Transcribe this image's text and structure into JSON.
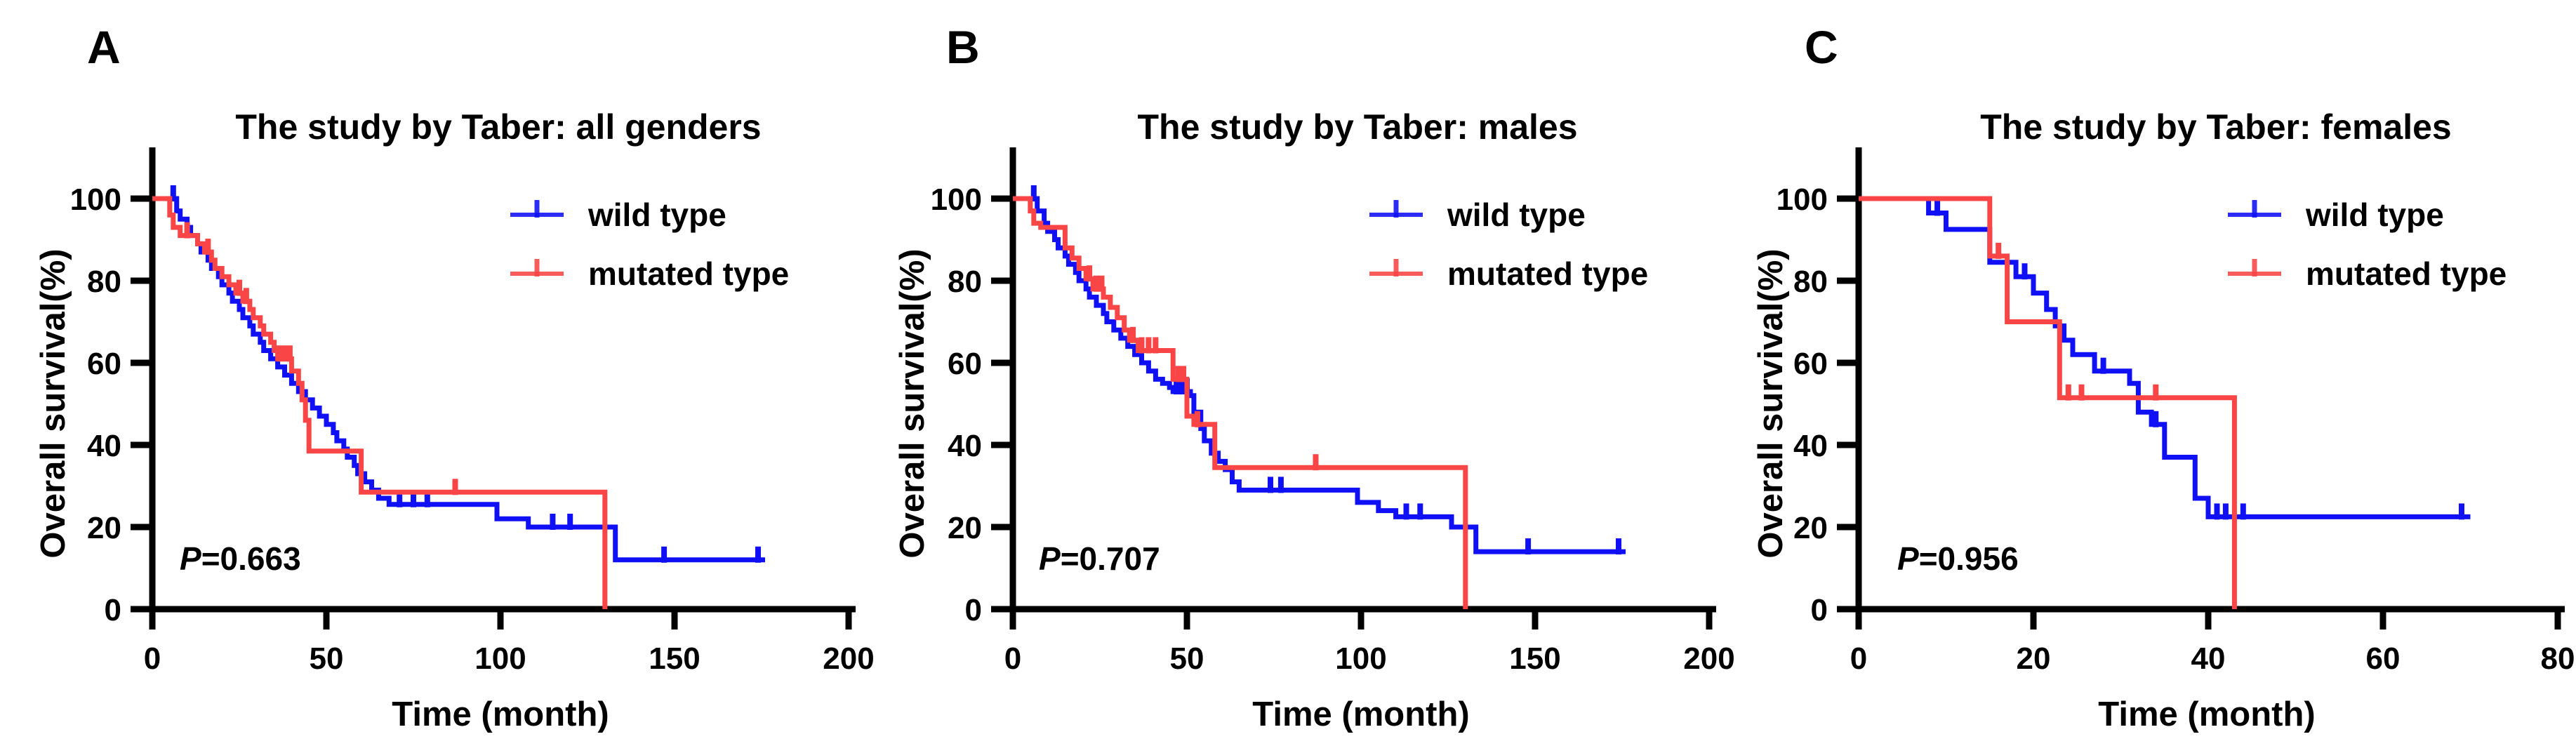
{
  "figure": {
    "background": "#ffffff",
    "text_color": "#000000",
    "wild_color": "#1010f7",
    "mutated_color": "#f94545"
  },
  "chart_data": [
    {
      "type": "line",
      "panel_label": "A",
      "title": "The study by Taber: all genders",
      "xlabel": "Time (month)",
      "ylabel": "Overall survival(%)",
      "p_value": "P=0.663",
      "xlim": [
        0,
        200
      ],
      "ylim": [
        0,
        100
      ],
      "xticks": [
        0,
        50,
        100,
        150,
        200
      ],
      "yticks": [
        0,
        20,
        40,
        60,
        80,
        100
      ],
      "grid": false,
      "legend_position": "upper right inside",
      "legend": [
        "wild type",
        "mutated type"
      ],
      "series": [
        {
          "name": "wild type",
          "color": "#1010f7",
          "steps": [
            [
              4,
              100
            ],
            [
              7,
              97
            ],
            [
              8,
              95
            ],
            [
              10,
              93
            ],
            [
              11,
              91
            ],
            [
              13,
              89
            ],
            [
              14,
              87
            ],
            [
              16,
              85
            ],
            [
              17,
              83
            ],
            [
              19,
              81
            ],
            [
              20,
              79
            ],
            [
              22,
              77
            ],
            [
              23,
              75
            ],
            [
              25,
              73
            ],
            [
              26,
              71
            ],
            [
              28,
              69
            ],
            [
              29,
              67
            ],
            [
              31,
              65
            ],
            [
              32,
              63
            ],
            [
              34,
              61
            ],
            [
              36,
              59
            ],
            [
              38,
              57
            ],
            [
              40,
              55
            ],
            [
              42,
              53
            ],
            [
              44,
              51
            ],
            [
              46,
              49
            ],
            [
              48,
              47
            ],
            [
              50,
              45
            ],
            [
              52,
              43
            ],
            [
              53,
              41
            ],
            [
              55,
              39
            ],
            [
              56,
              37
            ],
            [
              58,
              35
            ],
            [
              59,
              33
            ],
            [
              61,
              31
            ],
            [
              63,
              29
            ],
            [
              65,
              27
            ],
            [
              68,
              25.5
            ],
            [
              99,
              22
            ],
            [
              108,
              20
            ],
            [
              133,
              12
            ],
            [
              176,
              12
            ]
          ],
          "censors": [
            [
              6,
              100
            ],
            [
              71,
              25.5
            ],
            [
              75,
              25.5
            ],
            [
              79,
              25.5
            ],
            [
              115,
              20
            ],
            [
              120,
              20
            ],
            [
              147,
              12
            ],
            [
              174,
              12
            ]
          ]
        },
        {
          "name": "mutated type",
          "color": "#f94545",
          "steps": [
            [
              0,
              100
            ],
            [
              5,
              96
            ],
            [
              6,
              93
            ],
            [
              8,
              91
            ],
            [
              13,
              89
            ],
            [
              15,
              87
            ],
            [
              17,
              85
            ],
            [
              18,
              83
            ],
            [
              20,
              81
            ],
            [
              22,
              79
            ],
            [
              24,
              77
            ],
            [
              26,
              75
            ],
            [
              28,
              73
            ],
            [
              29,
              71
            ],
            [
              31,
              69
            ],
            [
              32,
              67
            ],
            [
              34,
              65
            ],
            [
              35,
              63
            ],
            [
              36,
              61
            ],
            [
              40,
              58
            ],
            [
              42,
              55
            ],
            [
              43,
              51
            ],
            [
              44,
              46
            ],
            [
              45,
              38.5
            ],
            [
              60,
              28.5
            ],
            [
              130,
              28.5
            ],
            [
              130,
              0
            ]
          ],
          "censors": [
            [
              10,
              91
            ],
            [
              16,
              87
            ],
            [
              25,
              77
            ],
            [
              27,
              75
            ],
            [
              36.5,
              61
            ],
            [
              38,
              61
            ],
            [
              39.5,
              61
            ],
            [
              87,
              28.5
            ]
          ]
        }
      ]
    },
    {
      "type": "line",
      "panel_label": "B",
      "title": "The study by Taber: males",
      "xlabel": "Time (month)",
      "ylabel": "Overall survival(%)",
      "p_value": "P=0.707",
      "xlim": [
        0,
        200
      ],
      "ylim": [
        0,
        100
      ],
      "xticks": [
        0,
        50,
        100,
        150,
        200
      ],
      "yticks": [
        0,
        20,
        40,
        60,
        80,
        100
      ],
      "grid": false,
      "legend_position": "upper right inside",
      "legend": [
        "wild type",
        "mutated type"
      ],
      "series": [
        {
          "name": "wild type",
          "color": "#1010f7",
          "steps": [
            [
              4,
              100
            ],
            [
              7,
              97
            ],
            [
              9,
              94
            ],
            [
              10,
              92
            ],
            [
              12,
              90
            ],
            [
              13,
              88
            ],
            [
              15,
              86
            ],
            [
              16,
              84
            ],
            [
              18,
              82
            ],
            [
              19,
              80
            ],
            [
              21,
              78
            ],
            [
              22,
              76
            ],
            [
              24,
              74
            ],
            [
              26,
              72
            ],
            [
              27,
              70
            ],
            [
              29,
              68
            ],
            [
              31,
              66
            ],
            [
              33,
              64
            ],
            [
              35,
              62
            ],
            [
              37,
              60
            ],
            [
              39,
              58
            ],
            [
              41,
              56
            ],
            [
              43,
              55
            ],
            [
              45,
              54
            ],
            [
              46,
              53
            ],
            [
              51,
              52
            ],
            [
              52,
              48
            ],
            [
              54,
              44
            ],
            [
              55,
              41
            ],
            [
              57,
              38
            ],
            [
              59,
              36
            ],
            [
              61,
              34
            ],
            [
              63,
              31
            ],
            [
              65,
              29
            ],
            [
              99,
              26
            ],
            [
              105,
              24
            ],
            [
              110,
              22.5
            ],
            [
              126,
              20
            ],
            [
              133,
              14
            ],
            [
              176,
              14
            ]
          ],
          "censors": [
            [
              6,
              100
            ],
            [
              47,
              53
            ],
            [
              48.5,
              53
            ],
            [
              50,
              53
            ],
            [
              74,
              29
            ],
            [
              77,
              29
            ],
            [
              113,
              22.5
            ],
            [
              117,
              22.5
            ],
            [
              148,
              14
            ],
            [
              174,
              14
            ]
          ]
        },
        {
          "name": "mutated type",
          "color": "#f94545",
          "steps": [
            [
              0,
              100
            ],
            [
              5,
              97
            ],
            [
              6,
              94
            ],
            [
              8,
              93
            ],
            [
              15,
              88
            ],
            [
              17,
              85.5
            ],
            [
              19,
              83
            ],
            [
              21,
              80.5
            ],
            [
              23,
              78
            ],
            [
              26,
              76
            ],
            [
              28,
              73.5
            ],
            [
              30,
              71
            ],
            [
              32,
              68
            ],
            [
              33.5,
              65.5
            ],
            [
              36,
              63
            ],
            [
              46,
              56
            ],
            [
              50,
              47
            ],
            [
              52,
              45
            ],
            [
              58,
              34.5
            ],
            [
              130,
              34.5
            ],
            [
              130,
              0
            ]
          ],
          "censors": [
            [
              22,
              80.5
            ],
            [
              24,
              78
            ],
            [
              25.5,
              78
            ],
            [
              34.5,
              65.5
            ],
            [
              37,
              63
            ],
            [
              39,
              63
            ],
            [
              41,
              63
            ],
            [
              47.5,
              56
            ],
            [
              49,
              56
            ],
            [
              53,
              45
            ],
            [
              87,
              34.5
            ]
          ]
        }
      ]
    },
    {
      "type": "line",
      "panel_label": "C",
      "title": "The study by Taber: females",
      "xlabel": "Time (month)",
      "ylabel": "Overall survival(%)",
      "p_value": "P=0.956",
      "xlim": [
        0,
        80
      ],
      "ylim": [
        0,
        100
      ],
      "xticks": [
        0,
        20,
        40,
        60,
        80
      ],
      "yticks": [
        0,
        20,
        40,
        60,
        80,
        100
      ],
      "grid": false,
      "legend_position": "upper right inside",
      "legend": [
        "wild type",
        "mutated type"
      ],
      "series": [
        {
          "name": "wild type",
          "color": "#1010f7",
          "steps": [
            [
              0,
              100
            ],
            [
              8,
              96.5
            ],
            [
              10,
              92.5
            ],
            [
              15,
              84.5
            ],
            [
              18,
              81
            ],
            [
              20,
              77
            ],
            [
              21.5,
              73
            ],
            [
              22.5,
              69
            ],
            [
              23.5,
              65.5
            ],
            [
              24.5,
              62
            ],
            [
              27,
              58
            ],
            [
              31,
              55
            ],
            [
              32,
              48
            ],
            [
              33.5,
              45
            ],
            [
              35,
              37
            ],
            [
              38.5,
              27
            ],
            [
              40,
              22.5
            ],
            [
              70,
              22.5
            ]
          ],
          "censors": [
            [
              9,
              96.5
            ],
            [
              19,
              81
            ],
            [
              28,
              58
            ],
            [
              34,
              45
            ],
            [
              41,
              22.5
            ],
            [
              42,
              22.5
            ],
            [
              44,
              22.5
            ],
            [
              69,
              22.5
            ]
          ]
        },
        {
          "name": "mutated type",
          "color": "#f94545",
          "steps": [
            [
              0,
              100
            ],
            [
              15,
              86
            ],
            [
              17,
              70
            ],
            [
              23,
              51.5
            ],
            [
              43,
              51.5
            ],
            [
              43,
              0
            ]
          ],
          "censors": [
            [
              16,
              86
            ],
            [
              24,
              51.5
            ],
            [
              25.5,
              51.5
            ],
            [
              34,
              51.5
            ]
          ]
        }
      ]
    }
  ]
}
